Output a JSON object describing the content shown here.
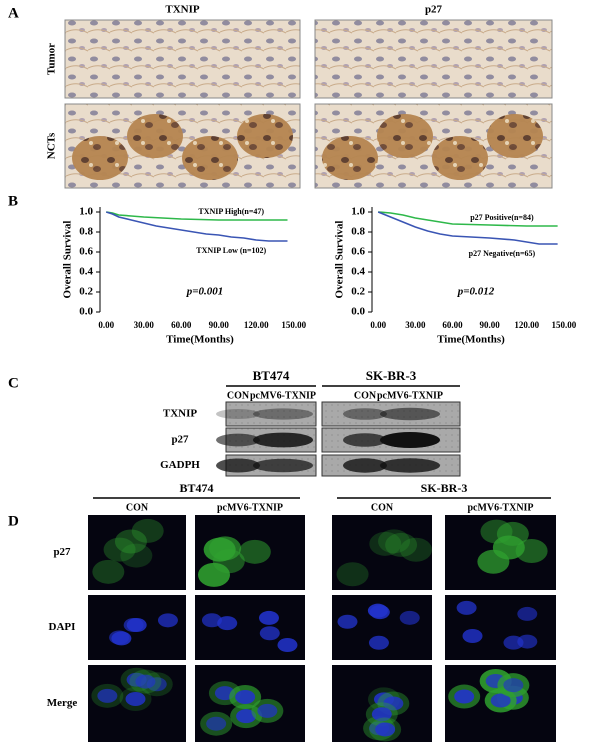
{
  "panels": {
    "a": {
      "label": "A",
      "columns": [
        "TXNIP",
        "p27"
      ],
      "rows": [
        "Tumor",
        "NCTs"
      ]
    },
    "b": {
      "label": "B"
    },
    "c": {
      "label": "C",
      "cell_lines": [
        "BT474",
        "SK-BR-3"
      ],
      "conditions": [
        "CON",
        "pcMV6-TXNIP",
        "CON",
        "pcMV6-TXNIP"
      ],
      "proteins": [
        "TXNIP",
        "p27",
        "GADPH"
      ]
    },
    "d": {
      "label": "D",
      "cell_lines": [
        "BT474",
        "SK-BR-3"
      ],
      "conditions": [
        "CON",
        "pcMV6-TXNIP",
        "CON",
        "pcMV6-TXNIP"
      ],
      "stains": [
        "p27",
        "DAPI",
        "Merge"
      ]
    }
  },
  "chart_data": [
    {
      "type": "line",
      "x_label": "Time(Months)",
      "y_label": "Overall Survival",
      "annotation": "p=0.001",
      "xlim": [
        -5,
        155
      ],
      "ylim": [
        0,
        1.05
      ],
      "xticks": [
        {
          "value": 0,
          "label": "0.00"
        },
        {
          "value": 30,
          "label": "30.00"
        },
        {
          "value": 60,
          "label": "60.00"
        },
        {
          "value": 90,
          "label": "90.00"
        },
        {
          "value": 120,
          "label": "120.00"
        },
        {
          "value": 150,
          "label": "150.00"
        }
      ],
      "yticks": [
        {
          "value": 0,
          "label": "0.0"
        },
        {
          "value": 0.2,
          "label": "0.2"
        },
        {
          "value": 0.4,
          "label": "0.4"
        },
        {
          "value": 0.6,
          "label": "0.6"
        },
        {
          "value": 0.8,
          "label": "0.8"
        },
        {
          "value": 1,
          "label": "1.0"
        }
      ],
      "series": [
        {
          "name": "TXNIP High(n=47)",
          "color": "#2eb84a",
          "x": [
            0,
            5,
            10,
            20,
            30,
            45,
            60,
            90,
            120,
            145
          ],
          "values": [
            1,
            0.99,
            0.97,
            0.96,
            0.95,
            0.94,
            0.93,
            0.92,
            0.92,
            0.92
          ]
        },
        {
          "name": "TXNIP Low (n=102)",
          "color": "#3a55b4",
          "x": [
            0,
            5,
            10,
            20,
            30,
            40,
            50,
            60,
            70,
            80,
            90,
            100,
            110,
            120,
            130,
            145
          ],
          "values": [
            1,
            0.98,
            0.95,
            0.92,
            0.89,
            0.86,
            0.84,
            0.82,
            0.8,
            0.78,
            0.77,
            0.75,
            0.74,
            0.72,
            0.71,
            0.71
          ]
        }
      ]
    },
    {
      "type": "line",
      "x_label": "Time(Months)",
      "y_label": "Overall Survival",
      "annotation": "p=0.012",
      "xlim": [
        -5,
        155
      ],
      "ylim": [
        0,
        1.05
      ],
      "xticks": [
        {
          "value": 0,
          "label": "0.00"
        },
        {
          "value": 30,
          "label": "30.00"
        },
        {
          "value": 60,
          "label": "60.00"
        },
        {
          "value": 90,
          "label": "90.00"
        },
        {
          "value": 120,
          "label": "120.00"
        },
        {
          "value": 150,
          "label": "150.00"
        }
      ],
      "yticks": [
        {
          "value": 0,
          "label": "0.0"
        },
        {
          "value": 0.2,
          "label": "0.2"
        },
        {
          "value": 0.4,
          "label": "0.4"
        },
        {
          "value": 0.6,
          "label": "0.6"
        },
        {
          "value": 0.8,
          "label": "0.8"
        },
        {
          "value": 1,
          "label": "1.0"
        }
      ],
      "series": [
        {
          "name": "p27 Positive(n=84)",
          "color": "#2eb84a",
          "x": [
            0,
            10,
            20,
            30,
            45,
            60,
            90,
            120,
            145
          ],
          "values": [
            1,
            0.99,
            0.97,
            0.94,
            0.91,
            0.88,
            0.87,
            0.86,
            0.86
          ]
        },
        {
          "name": "p27 Negative(n=65)",
          "color": "#3a55b4",
          "x": [
            0,
            10,
            20,
            30,
            40,
            50,
            60,
            75,
            90,
            110,
            130,
            145
          ],
          "values": [
            1,
            0.95,
            0.9,
            0.85,
            0.81,
            0.78,
            0.76,
            0.75,
            0.74,
            0.72,
            0.68,
            0.68
          ]
        }
      ]
    }
  ]
}
